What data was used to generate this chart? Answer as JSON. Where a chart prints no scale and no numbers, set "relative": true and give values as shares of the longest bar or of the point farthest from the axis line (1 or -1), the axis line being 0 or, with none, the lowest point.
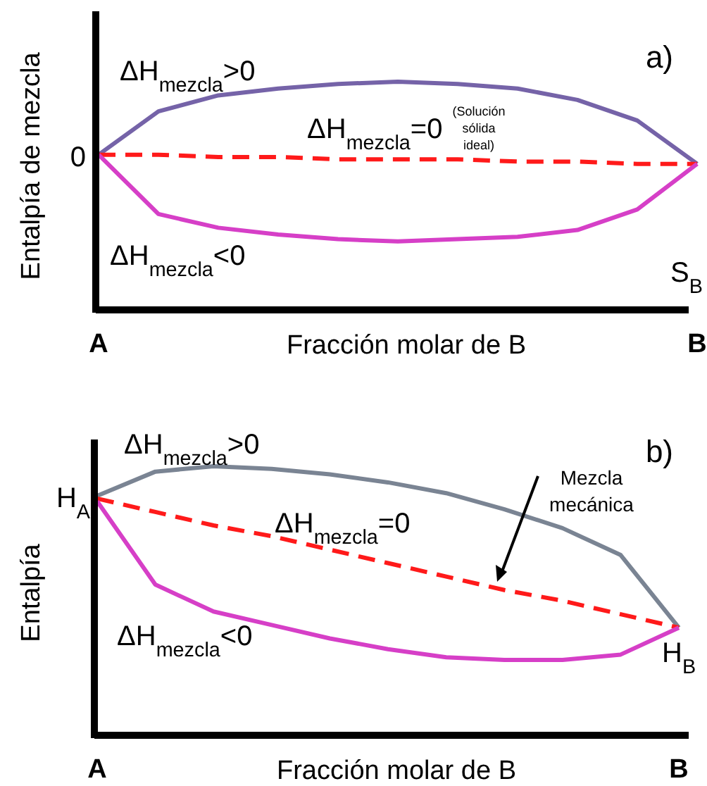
{
  "chart_data": [
    {
      "type": "line",
      "title": "a)",
      "xlabel": "Fracción molar de B",
      "ylabel": "Entalpía de mezcla",
      "relative": true,
      "categories": [
        "A",
        null,
        null,
        null,
        null,
        null,
        null,
        null,
        null,
        null,
        "B"
      ],
      "series": [
        {
          "name": "ΔH$_{mezcla}$>0",
          "color": "#7563a8",
          "line_style": "solid",
          "values": [
            0.68,
            0.87,
            0.94,
            0.97,
            0.99,
            1.0,
            0.99,
            0.97,
            0.92,
            0.83,
            0.64
          ]
        },
        {
          "name": "ΔH$_{mezcla}$=0",
          "color": "#ff1a1a",
          "line_style": "dashed",
          "values": [
            0.68,
            0.68,
            0.67,
            0.67,
            0.66,
            0.66,
            0.66,
            0.65,
            0.65,
            0.64,
            0.64
          ]
        },
        {
          "name": "ΔH$_{mezcla}$<0",
          "color": "#d63fc7",
          "line_style": "solid",
          "values": [
            0.68,
            0.42,
            0.36,
            0.33,
            0.31,
            0.3,
            0.31,
            0.32,
            0.35,
            0.44,
            0.64
          ]
        }
      ],
      "annotations": [
        "0",
        "(Solución sólida ideal)",
        "S$_{B}$"
      ]
    },
    {
      "type": "line",
      "title": "b)",
      "xlabel": "Fracción molar de B",
      "ylabel": "Entalpía",
      "relative": true,
      "categories": [
        "A",
        null,
        null,
        null,
        null,
        null,
        null,
        null,
        null,
        null,
        "B"
      ],
      "series": [
        {
          "name": "ΔH$_{mezcla}$>0",
          "color": "#7a8493",
          "line_style": "solid",
          "values": [
            0.89,
            0.98,
            1.0,
            0.99,
            0.97,
            0.94,
            0.9,
            0.84,
            0.77,
            0.67,
            0.4
          ]
        },
        {
          "name": "ΔH$_{mezcla}$=0",
          "color": "#ff1a1a",
          "line_style": "dashed",
          "values": [
            0.88,
            0.83,
            0.78,
            0.74,
            0.69,
            0.64,
            0.59,
            0.54,
            0.5,
            0.45,
            0.4
          ]
        },
        {
          "name": "ΔH$_{mezcla}$<0",
          "color": "#d63fc7",
          "line_style": "solid",
          "values": [
            0.87,
            0.56,
            0.46,
            0.41,
            0.36,
            0.32,
            0.29,
            0.28,
            0.28,
            0.3,
            0.4
          ]
        }
      ],
      "annotations": [
        "H$_{A}$",
        "H$_{B}$",
        "Mezcla mecánica"
      ]
    }
  ]
}
